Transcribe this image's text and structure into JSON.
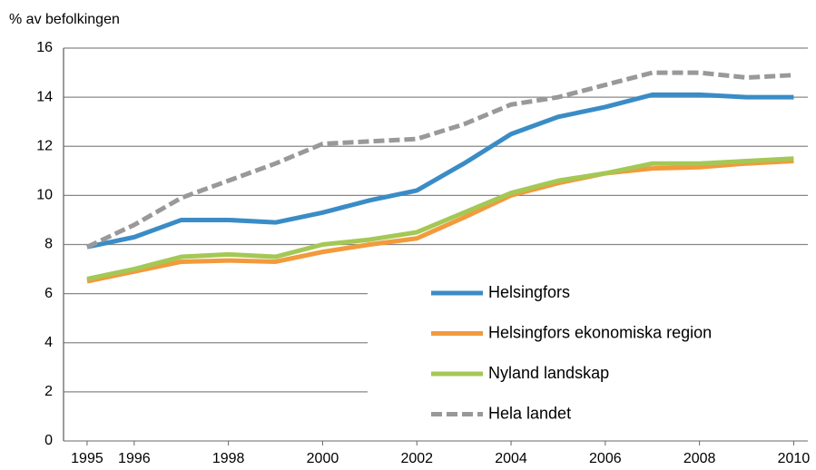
{
  "chart_data": {
    "type": "line",
    "y_label": "% av befolkingen",
    "x": [
      1995,
      1996,
      1997,
      1998,
      1999,
      2000,
      2001,
      2002,
      2003,
      2004,
      2005,
      2006,
      2007,
      2008,
      2009,
      2010
    ],
    "series": [
      {
        "name": "Helsingfors",
        "color": "#3a8cc6",
        "style": "solid",
        "values": [
          7.9,
          8.3,
          9.0,
          9.0,
          8.9,
          9.3,
          9.8,
          10.2,
          11.3,
          12.5,
          13.2,
          13.6,
          14.1,
          14.1,
          14.0,
          14.0
        ]
      },
      {
        "name": "Helsingfors ekonomiska region",
        "color": "#f29a3c",
        "style": "solid",
        "values": [
          6.5,
          6.9,
          7.3,
          7.35,
          7.3,
          7.7,
          8.0,
          8.25,
          9.1,
          10.0,
          10.5,
          10.9,
          11.1,
          11.15,
          11.3,
          11.4
        ]
      },
      {
        "name": "Nyland landskap",
        "color": "#a4c855",
        "style": "solid",
        "values": [
          6.6,
          7.0,
          7.5,
          7.6,
          7.5,
          8.0,
          8.2,
          8.5,
          9.3,
          10.1,
          10.6,
          10.9,
          11.3,
          11.3,
          11.4,
          11.5
        ]
      },
      {
        "name": "Hela landet",
        "color": "#999999",
        "style": "dashed",
        "values": [
          7.9,
          8.8,
          9.9,
          10.6,
          11.3,
          12.1,
          12.2,
          12.3,
          12.9,
          13.7,
          14.0,
          14.5,
          15.0,
          15.0,
          14.8,
          14.9
        ]
      }
    ],
    "xlim": [
      1994.5,
      2010.3
    ],
    "xticks": [
      1995,
      1996,
      1998,
      2000,
      2002,
      2004,
      2006,
      2008,
      2010
    ],
    "ylim": [
      0,
      16
    ],
    "yticks": [
      0,
      2,
      4,
      6,
      8,
      10,
      12,
      14,
      16
    ],
    "grid": true,
    "legend": "bottom-right"
  }
}
